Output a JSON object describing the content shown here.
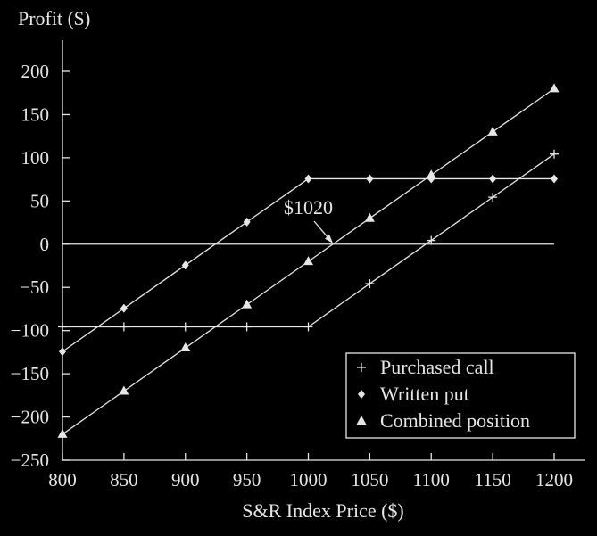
{
  "chart_data": {
    "type": "line",
    "ylabel": "Profit ($)",
    "xlabel": "S&R Index Price ($)",
    "xlim": [
      800,
      1200
    ],
    "ylim": [
      -250,
      200
    ],
    "x_ticks": [
      800,
      850,
      900,
      950,
      1000,
      1050,
      1100,
      1150,
      1200
    ],
    "y_ticks": [
      200,
      150,
      100,
      50,
      0,
      -50,
      -100,
      -150,
      -200,
      -250
    ],
    "x_tick_labels": [
      "800",
      "850",
      "900",
      "950",
      "1000",
      "1050",
      "1100",
      "1150",
      "1200"
    ],
    "y_tick_labels": [
      "200",
      "150",
      "100",
      "50",
      "0",
      "−50",
      "−100",
      "−150",
      "−200",
      "−250"
    ],
    "x": [
      800,
      850,
      900,
      950,
      1000,
      1050,
      1100,
      1150,
      1200
    ],
    "series": [
      {
        "name": "Purchased call",
        "marker": "plus",
        "values": [
          -95.68,
          -95.68,
          -95.68,
          -95.68,
          -95.68,
          -45.68,
          4.32,
          54.32,
          104.32
        ]
      },
      {
        "name": "Written put",
        "marker": "diamond",
        "values": [
          -124.32,
          -74.32,
          -24.32,
          25.68,
          75.68,
          75.68,
          75.68,
          75.68,
          75.68
        ]
      },
      {
        "name": "Combined position",
        "marker": "triangle",
        "values": [
          -220,
          -170,
          -120,
          -70,
          -20,
          30,
          80,
          130,
          180
        ]
      }
    ],
    "zero_line": true,
    "annotation": {
      "text": "$1020",
      "x": 1020,
      "y": 0
    },
    "legend_position": "bottom-right"
  }
}
